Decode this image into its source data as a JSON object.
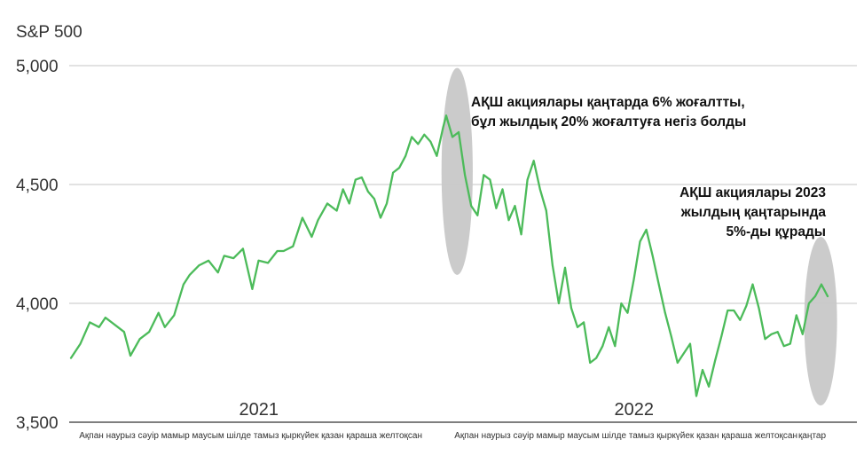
{
  "chart_data": {
    "type": "line",
    "ylabel": "S&P 500",
    "yticks": [
      {
        "value": 5000,
        "label": "5,000"
      },
      {
        "value": 4500,
        "label": "4,500"
      },
      {
        "value": 4000,
        "label": "4,000"
      },
      {
        "value": 3500,
        "label": "3,500"
      }
    ],
    "ylim": [
      3500,
      5000
    ],
    "grid": true,
    "years": [
      {
        "label": "2021",
        "month_index": 6
      },
      {
        "label": "2022",
        "month_index": 18
      }
    ],
    "month_rows": [
      {
        "text": "Ақпан наурыз сәуір мамыр маусым шілде тамыз қыркүйек қазан қараша желтоқсан",
        "start_month_index": 1
      },
      {
        "text": "Ақпан наурыз сәуір мамыр маусым шілде тамыз қыркүйек қазан қараша желтоқсан",
        "start_month_index": 13
      },
      {
        "text": "қаңтар",
        "start_month_index": 24
      }
    ],
    "series": [
      {
        "color": "#4cbb5a",
        "x": [
          0,
          0.3,
          0.6,
          0.9,
          1.1,
          1.4,
          1.7,
          1.9,
          2.2,
          2.5,
          2.8,
          3.0,
          3.3,
          3.6,
          3.8,
          4.1,
          4.4,
          4.7,
          4.9,
          5.2,
          5.5,
          5.8,
          6.0,
          6.3,
          6.6,
          6.8,
          7.1,
          7.4,
          7.7,
          7.9,
          8.2,
          8.5,
          8.7,
          8.9,
          9.1,
          9.3,
          9.5,
          9.7,
          9.9,
          10.1,
          10.3,
          10.5,
          10.7,
          10.9,
          11.1,
          11.3,
          11.5,
          11.7,
          11.9,
          12.0,
          12.2,
          12.4,
          12.6,
          12.8,
          13.0,
          13.2,
          13.4,
          13.6,
          13.8,
          14.0,
          14.2,
          14.4,
          14.6,
          14.8,
          15.0,
          15.2,
          15.4,
          15.6,
          15.8,
          16.0,
          16.2,
          16.4,
          16.6,
          16.8,
          17.0,
          17.2,
          17.4,
          17.6,
          17.8,
          18.0,
          18.2,
          18.4,
          18.6,
          18.8,
          19.0,
          19.2,
          19.4,
          19.6,
          19.8,
          20.0,
          20.2,
          20.4,
          20.6,
          20.8,
          21.0,
          21.2,
          21.4,
          21.6,
          21.8,
          22.0,
          22.2,
          22.4,
          22.6,
          22.8,
          23.0,
          23.2,
          23.4,
          23.6,
          23.8,
          24.0,
          24.2
        ],
        "values": [
          3770,
          3830,
          3920,
          3900,
          3940,
          3910,
          3880,
          3780,
          3850,
          3880,
          3960,
          3900,
          3950,
          4080,
          4120,
          4160,
          4180,
          4130,
          4200,
          4190,
          4230,
          4060,
          4180,
          4170,
          4220,
          4220,
          4240,
          4360,
          4280,
          4350,
          4420,
          4390,
          4480,
          4420,
          4520,
          4530,
          4470,
          4440,
          4360,
          4420,
          4550,
          4570,
          4620,
          4700,
          4670,
          4710,
          4680,
          4620,
          4740,
          4790,
          4700,
          4720,
          4540,
          4410,
          4370,
          4540,
          4520,
          4400,
          4480,
          4350,
          4410,
          4290,
          4520,
          4600,
          4480,
          4390,
          4160,
          4000,
          4150,
          3980,
          3900,
          3920,
          3750,
          3770,
          3820,
          3900,
          3820,
          4000,
          3960,
          4100,
          4260,
          4310,
          4200,
          4080,
          3960,
          3860,
          3750,
          3790,
          3830,
          3610,
          3720,
          3650,
          3760,
          3860,
          3970,
          3970,
          3930,
          3990,
          4080,
          3980,
          3850,
          3870,
          3880,
          3820,
          3830,
          3950,
          3870,
          4000,
          4030,
          4080,
          4030
        ]
      }
    ],
    "annotations": [
      {
        "lines": [
          "АҚШ акциялары қаңтарда 6% жоғалтты,",
          "бұл жылдық 20% жоғалтуға негіз болды"
        ],
        "month_index": 12.0,
        "align": "left"
      },
      {
        "lines": [
          "АҚШ акциялары 2023",
          "жылдың қаңтарында",
          "5%-ды құрады"
        ],
        "month_index": 24.2,
        "align": "right"
      }
    ],
    "highlights": [
      {
        "month_from": 11.85,
        "month_to": 12.85,
        "value_from": 4990,
        "value_to": 4120
      },
      {
        "month_from": 23.45,
        "month_to": 24.5,
        "value_from": 4280,
        "value_to": 3570
      }
    ],
    "colors": {
      "line": "#4cbb5a",
      "highlight": "#c8c8c8",
      "grid": "#c6c6c6",
      "axis": "#333333"
    }
  }
}
